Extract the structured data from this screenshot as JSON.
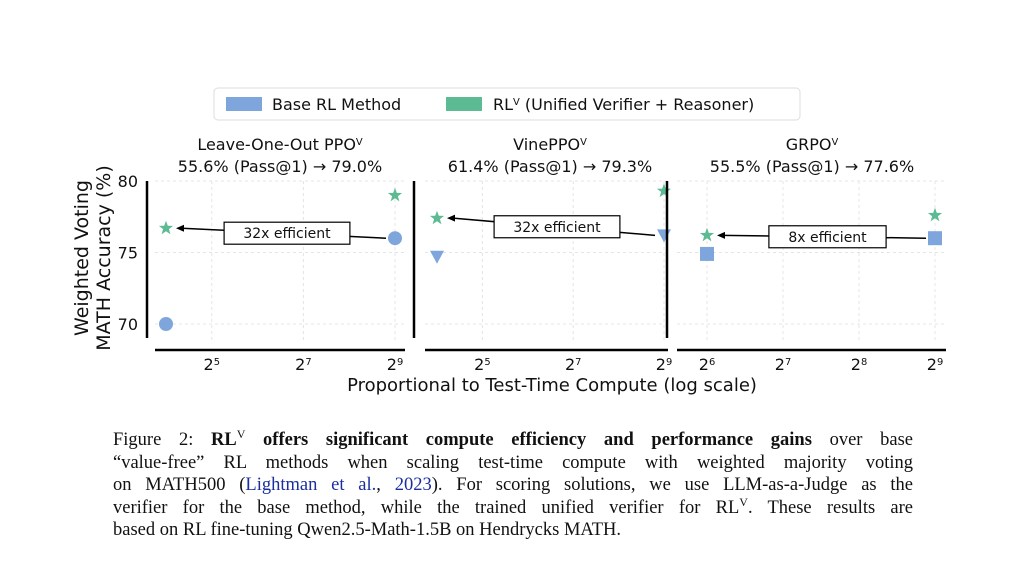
{
  "chart_data": {
    "type": "scatter",
    "legend": {
      "placement": "top-center",
      "entries": [
        {
          "label": "Base RL Method",
          "color": "#7fa6dc"
        },
        {
          "label": "RL",
          "sup": "V",
          "label_rest": " (Unified Verifier + Reasoner)",
          "color": "#5dbb94"
        }
      ]
    },
    "ylabel": [
      "Weighted Voting",
      "MATH Accuracy (%)"
    ],
    "xlabel": "Proportional to Test-Time Compute (log scale)",
    "ylim": [
      69,
      80.5
    ],
    "yticks": [
      70,
      75,
      80
    ],
    "grid": true,
    "panels": [
      {
        "title": "Leave-One-Out PPO",
        "title_sup": "V",
        "subtitle": "55.6% (Pass@1) → 79.0%",
        "xticks": [
          {
            "exp": 5,
            "label": "2",
            "sup": "5"
          },
          {
            "exp": 7,
            "label": "2",
            "sup": "7"
          },
          {
            "exp": 9,
            "label": "2",
            "sup": "9"
          }
        ],
        "base_marker": "circle",
        "base": [
          {
            "x": 16,
            "y": 70.0
          },
          {
            "x": 512,
            "y": 76.0
          }
        ],
        "rlv": [
          {
            "x": 16,
            "y": 76.7
          },
          {
            "x": 512,
            "y": 79.0
          }
        ],
        "annotation": "32x efficient"
      },
      {
        "title": "VinePPO",
        "title_sup": "V",
        "subtitle": "61.4% (Pass@1) → 79.3%",
        "xticks": [
          {
            "exp": 5,
            "label": "2",
            "sup": "5"
          },
          {
            "exp": 7,
            "label": "2",
            "sup": "7"
          },
          {
            "exp": 9,
            "label": "2",
            "sup": "9"
          }
        ],
        "base_marker": "triangle-down",
        "base": [
          {
            "x": 16,
            "y": 74.7
          },
          {
            "x": 512,
            "y": 76.2
          }
        ],
        "rlv": [
          {
            "x": 16,
            "y": 77.4
          },
          {
            "x": 512,
            "y": 79.3
          }
        ],
        "annotation": "32x efficient"
      },
      {
        "title": "GRPO",
        "title_sup": "V",
        "subtitle": "55.5% (Pass@1) → 77.6%",
        "xticks": [
          {
            "exp": 6,
            "label": "2",
            "sup": "6"
          },
          {
            "exp": 7,
            "label": "2",
            "sup": "7"
          },
          {
            "exp": 8,
            "label": "2",
            "sup": "8"
          },
          {
            "exp": 9,
            "label": "2",
            "sup": "9"
          }
        ],
        "base_marker": "square",
        "base": [
          {
            "x": 64,
            "y": 74.9
          },
          {
            "x": 512,
            "y": 76.0
          }
        ],
        "rlv": [
          {
            "x": 64,
            "y": 76.2
          },
          {
            "x": 512,
            "y": 77.6
          }
        ],
        "annotation": "8x efficient"
      }
    ]
  },
  "caption": {
    "l1a": "Figure 2: ",
    "l1b": "RL",
    "l1sup": "V",
    "l1c": " offers significant compute efficiency and performance gains",
    "l1d": " over base",
    "l2": "“value-free” RL methods when scaling test-time compute with weighted majority voting",
    "l3a": "on MATH500 (",
    "l3link1": "Lightman et al.",
    "l3b": ", ",
    "l3link2": "2023",
    "l3c": "). For scoring solutions, we use LLM-as-a-Judge as the",
    "l4a": "verifier for the base method, while the trained unified verifier for RL",
    "l4sup": "V",
    "l4b": ". These results are",
    "l5": "based on RL fine-tuning Qwen2.5-Math-1.5B on Hendrycks MATH."
  }
}
